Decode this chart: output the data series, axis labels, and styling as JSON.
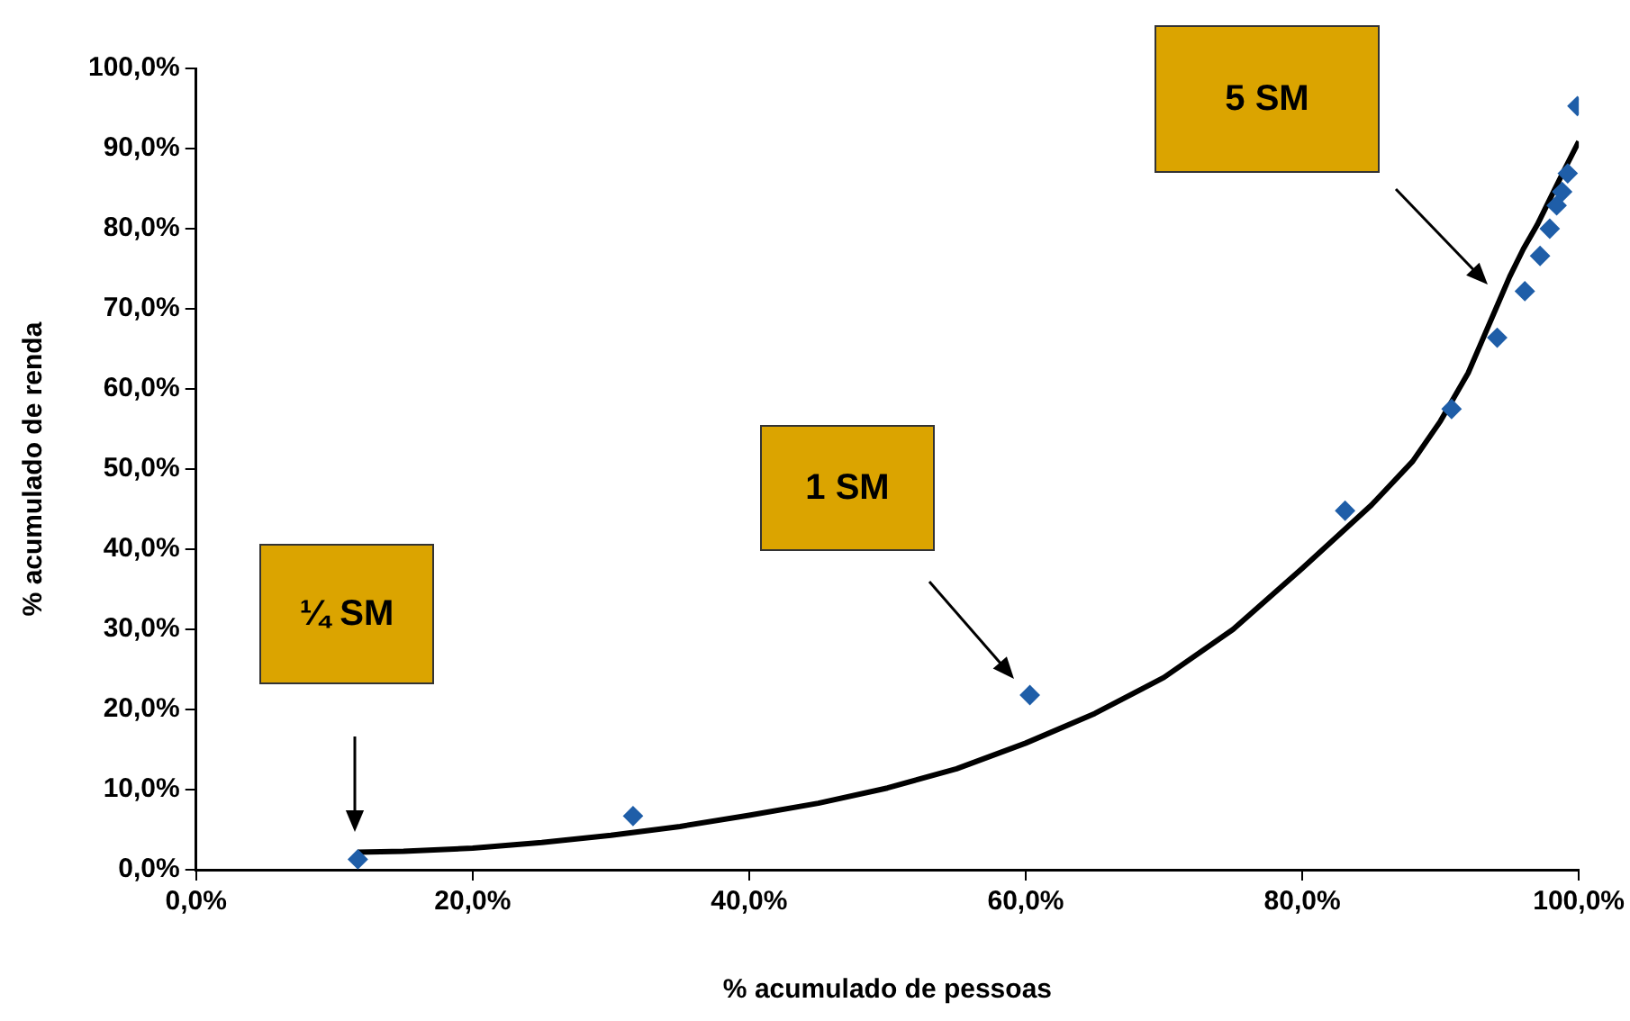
{
  "chart_data": {
    "type": "scatter",
    "xlabel": "% acumulado de pessoas",
    "ylabel": "% acumulado de renda",
    "xlim": [
      0,
      100
    ],
    "ylim": [
      0,
      100
    ],
    "xticks": [
      {
        "value": 0,
        "label": "0,0%"
      },
      {
        "value": 20,
        "label": "20,0%"
      },
      {
        "value": 40,
        "label": "40,0%"
      },
      {
        "value": 60,
        "label": "60,0%"
      },
      {
        "value": 80,
        "label": "80,0%"
      },
      {
        "value": 100,
        "label": "100,0%"
      }
    ],
    "yticks": [
      {
        "value": 0,
        "label": "0,0%"
      },
      {
        "value": 10,
        "label": "10,0%"
      },
      {
        "value": 20,
        "label": "20,0%"
      },
      {
        "value": 30,
        "label": "30,0%"
      },
      {
        "value": 40,
        "label": "40,0%"
      },
      {
        "value": 50,
        "label": "50,0%"
      },
      {
        "value": 60,
        "label": "60,0%"
      },
      {
        "value": 70,
        "label": "70,0%"
      },
      {
        "value": 80,
        "label": "80,0%"
      },
      {
        "value": 90,
        "label": "90,0%"
      },
      {
        "value": 100,
        "label": "100,0%"
      }
    ],
    "grid": false,
    "legend": false,
    "series": [
      {
        "type": "scatter",
        "marker": "diamond",
        "color": "#1f5ea8",
        "x": [
          11.7,
          31.6,
          60.3,
          83.1,
          90.8,
          94.1,
          96.1,
          97.2,
          97.9,
          98.4,
          98.8,
          99.2,
          99.9
        ],
        "values": [
          1.3,
          6.7,
          21.8,
          44.8,
          57.5,
          66.4,
          72.2,
          76.6,
          80.0,
          82.9,
          84.6,
          86.9,
          95.3
        ]
      },
      {
        "type": "line",
        "marker": "none",
        "line_style": "solid",
        "color": "#000000",
        "x": [
          11.7,
          15,
          20,
          25,
          30,
          35,
          40,
          45,
          50,
          55,
          60,
          65,
          70,
          75,
          80,
          85,
          88,
          90,
          92,
          93,
          94,
          95,
          96,
          97,
          98,
          99,
          100
        ],
        "values": [
          2.2,
          2.3,
          2.7,
          3.4,
          4.3,
          5.4,
          6.8,
          8.3,
          10.2,
          12.6,
          15.8,
          19.5,
          24,
          30,
          37.6,
          45.5,
          51,
          56,
          62,
          66,
          70,
          74,
          77.5,
          80.5,
          84,
          87.5,
          90.9
        ]
      }
    ],
    "annotations": [
      "¼ SM",
      "1 SM",
      "5 SM"
    ]
  }
}
